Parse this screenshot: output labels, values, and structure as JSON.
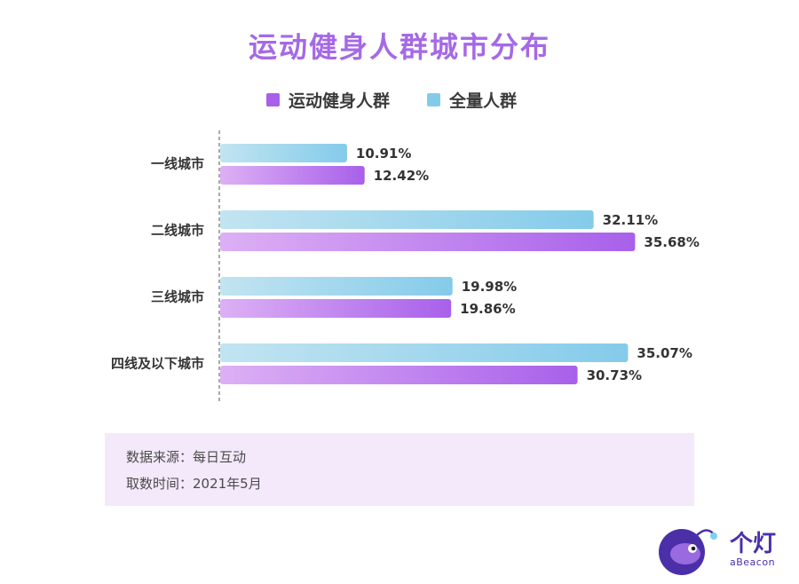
{
  "title": "运动健身人群城市分布",
  "colors": {
    "title": "#a569e6",
    "fitness_start": "#ddb0f5",
    "fitness_end": "#a860ea",
    "all_start": "#c2e4f1",
    "all_end": "#84cbea"
  },
  "chart_data": {
    "type": "bar",
    "orientation": "horizontal",
    "categories": [
      "一线城市",
      "二线城市",
      "三线城市",
      "四线及以下城市"
    ],
    "series": [
      {
        "name": "全量人群",
        "values": [
          10.91,
          32.11,
          19.98,
          35.07
        ],
        "labels": [
          "10.91%",
          "32.11%",
          "19.98%",
          "35.07%"
        ]
      },
      {
        "name": "运动健身人群",
        "values": [
          12.42,
          35.68,
          19.86,
          30.73
        ],
        "labels": [
          "12.42%",
          "35.68%",
          "19.86%",
          "30.73%"
        ]
      }
    ],
    "legend": [
      "运动健身人群",
      "全量人群"
    ],
    "xlim": [
      0,
      40
    ],
    "grid": false
  },
  "note": {
    "source": "数据来源：每日互动",
    "time": "取数时间：2021年5月"
  },
  "logo": {
    "name": "个灯",
    "sub": "aBeacon",
    "icon": "fish-mascot-icon"
  }
}
